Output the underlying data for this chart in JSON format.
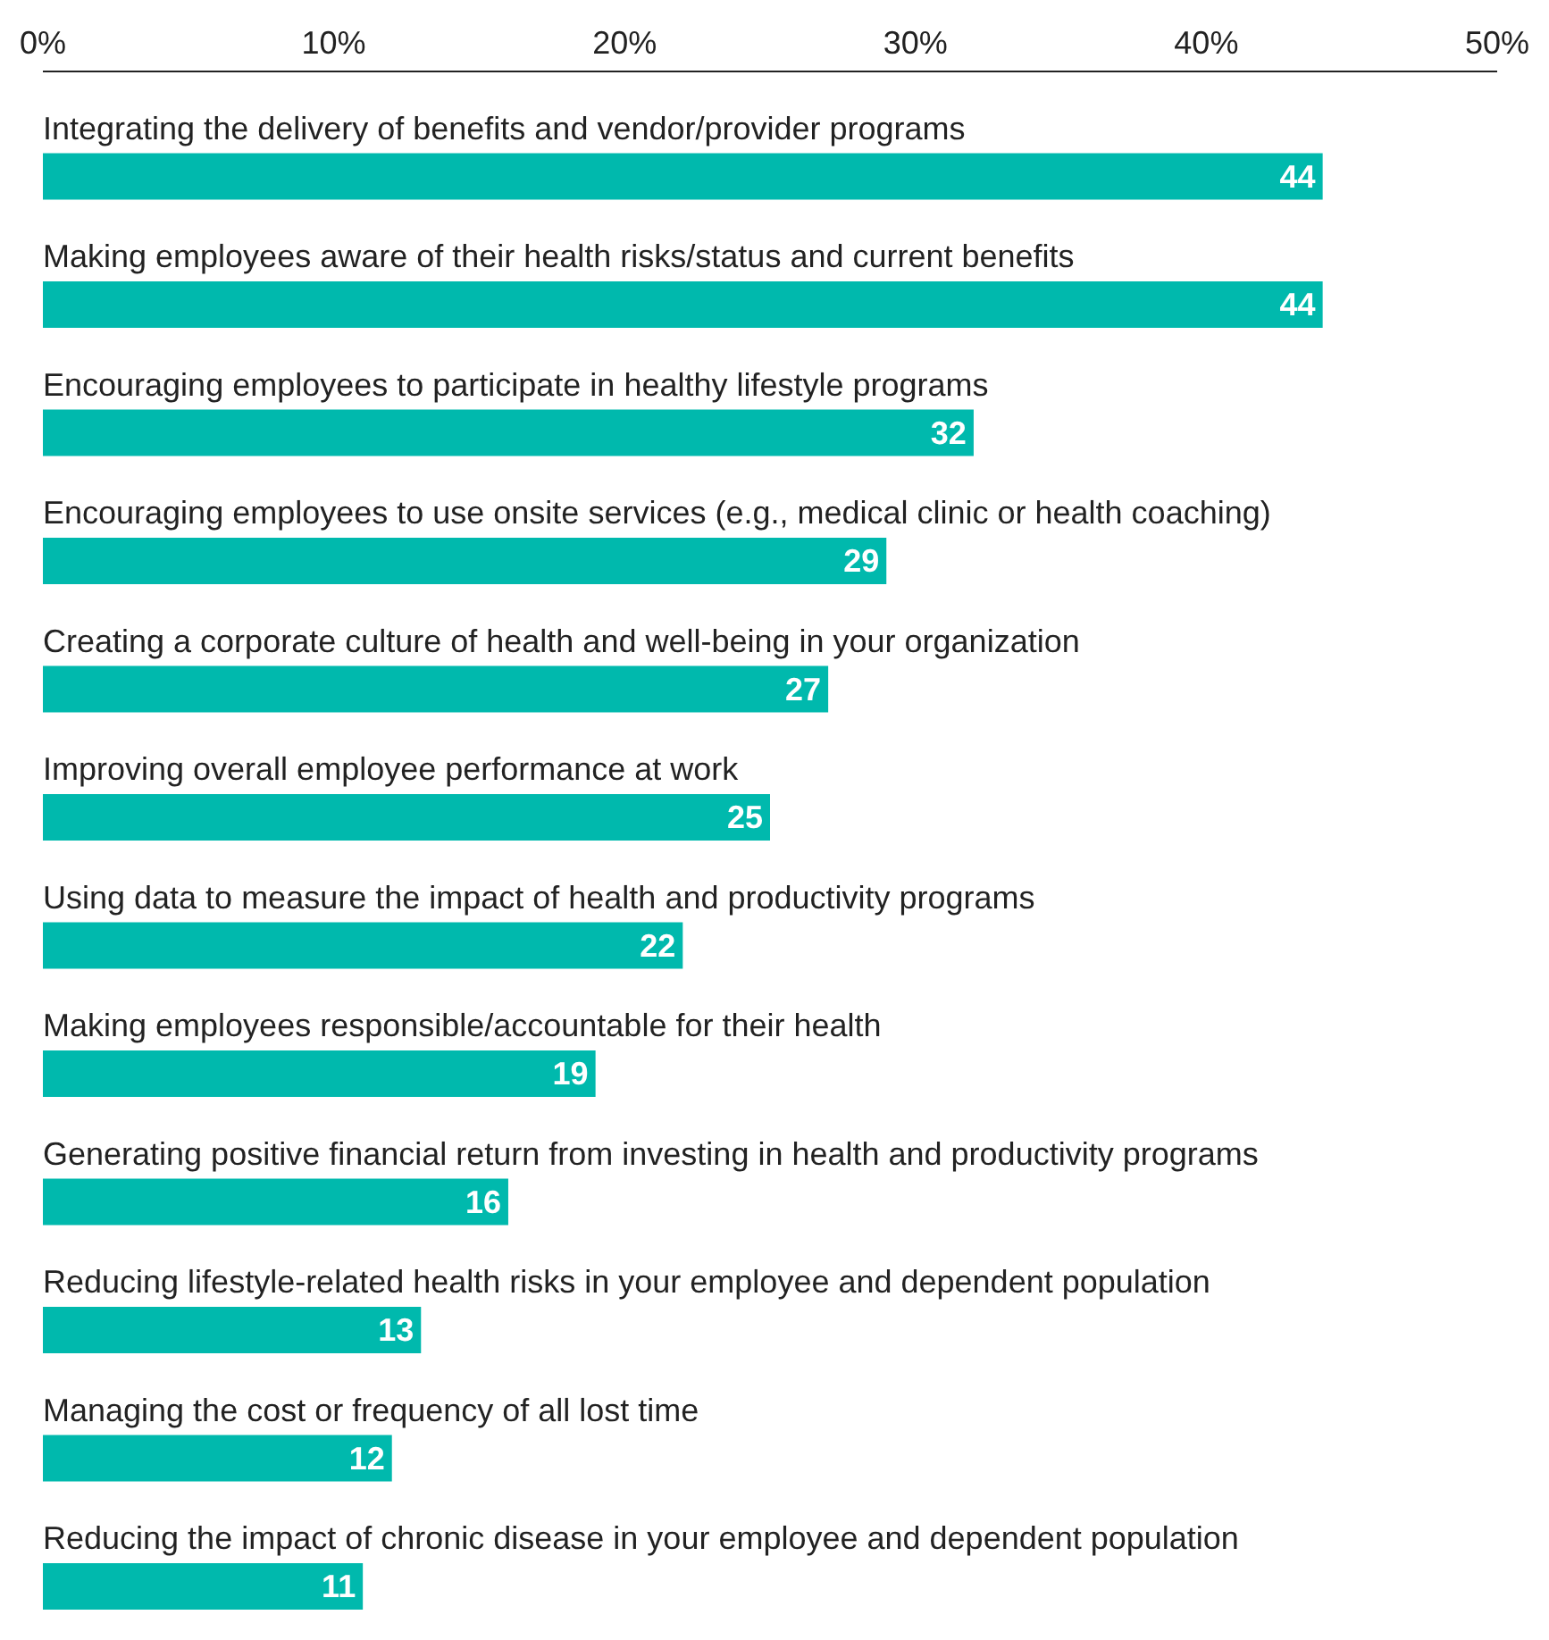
{
  "chart_data": {
    "type": "bar",
    "orientation": "horizontal",
    "categories": [
      "Integrating the delivery of benefits and vendor/provider programs",
      "Making employees aware of their health risks/status and current benefits",
      "Encouraging employees to participate in healthy lifestyle programs",
      "Encouraging employees to use onsite services (e.g., medical clinic or health coaching)",
      "Creating a corporate culture of health and well-being in your organization",
      "Improving overall employee performance at work",
      "Using data to measure the impact of health and productivity programs",
      "Making employees responsible/accountable for their health",
      "Generating positive financial return from investing in health and productivity programs",
      "Reducing lifestyle-related health risks in your employee and dependent population",
      "Managing the cost or frequency of all lost time",
      "Reducing the impact of chronic disease in your employee and dependent population"
    ],
    "values": [
      44,
      44,
      32,
      29,
      27,
      25,
      22,
      19,
      16,
      13,
      12,
      11
    ],
    "color": "#00b9ad",
    "xlim": [
      0,
      50
    ],
    "xticks": [
      {
        "value": 0,
        "label": "0%"
      },
      {
        "value": 10,
        "label": "10%"
      },
      {
        "value": 20,
        "label": "20%"
      },
      {
        "value": 30,
        "label": "30%"
      },
      {
        "value": 40,
        "label": "40%"
      },
      {
        "value": 50,
        "label": "50%"
      }
    ],
    "data_labels": true
  }
}
